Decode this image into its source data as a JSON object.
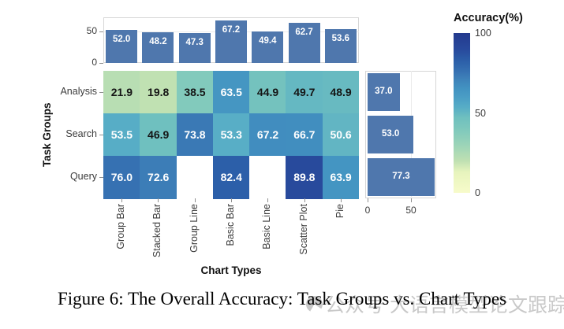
{
  "style": {
    "bar_color": "#4f77ad",
    "frame_color": "#d6d6d6",
    "tick_color": "#8f8f8f",
    "gridline_color": "#ebebeb",
    "cell_text_light": "#ffffff",
    "cell_text_dark": "#151515",
    "missing_cell_color": "#ffffff"
  },
  "caption": {
    "text": "Figure 6: The Overall Accuracy: Task Groups vs. Chart Types"
  },
  "watermark": {
    "text": "公众号 大语言模型论文跟踪"
  },
  "chart_data": {
    "type": "heatmap",
    "title": "",
    "xlabel": "Chart Types",
    "ylabel": "Task Groups",
    "columns": [
      "Group Bar",
      "Stacked Bar",
      "Group Line",
      "Basic Bar",
      "Basic Line",
      "Scatter Plot",
      "Pie"
    ],
    "rows": [
      "Analysis",
      "Search",
      "Query"
    ],
    "values": [
      [
        21.9,
        19.8,
        38.5,
        63.5,
        44.9,
        49.7,
        48.9
      ],
      [
        53.5,
        46.9,
        73.8,
        53.3,
        67.2,
        66.7,
        50.6
      ],
      [
        76.0,
        72.6,
        null,
        82.4,
        null,
        89.8,
        63.9
      ]
    ],
    "value_decimals": 1,
    "missing_cells_note": "Query×Group Line and Query×Basic Line are blank",
    "color_scale": {
      "title": "Accuracy(%)",
      "domain": [
        0,
        100
      ],
      "ticks": [
        100,
        50,
        0
      ],
      "stops": [
        [
          0.0,
          "#f7fbca"
        ],
        [
          0.13,
          "#e7f4bd"
        ],
        [
          0.2,
          "#bfe0b2"
        ],
        [
          0.3,
          "#9bd4b8"
        ],
        [
          0.385,
          "#82cabc"
        ],
        [
          0.47,
          "#6fc0bf"
        ],
        [
          0.535,
          "#57adc6"
        ],
        [
          0.6,
          "#4a9dc5"
        ],
        [
          0.655,
          "#4292c1"
        ],
        [
          0.72,
          "#3d7fb8"
        ],
        [
          0.76,
          "#3671b2"
        ],
        [
          0.824,
          "#2c5fa9"
        ],
        [
          0.9,
          "#28499c"
        ],
        [
          1.0,
          "#243a8e"
        ]
      ]
    },
    "top_marginal": {
      "type": "bar",
      "orientation": "vertical",
      "values": [
        52.0,
        48.2,
        47.3,
        67.2,
        49.4,
        62.7,
        53.6
      ],
      "axis_ticks": [
        50,
        0
      ]
    },
    "right_marginal": {
      "type": "bar",
      "orientation": "horizontal",
      "values": [
        37.0,
        53.0,
        77.3
      ],
      "axis_ticks": [
        0,
        50
      ]
    },
    "legend_position": "right",
    "grid": "minimal (50-line only)"
  }
}
